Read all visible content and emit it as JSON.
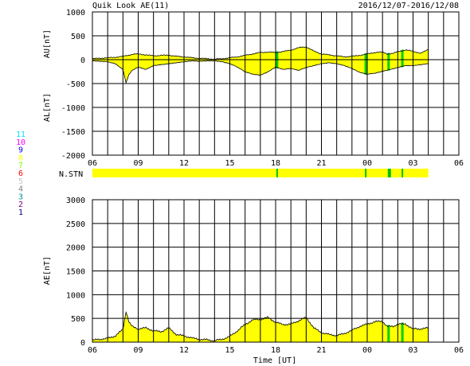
{
  "header": {
    "title": "Quik Look AE(11)",
    "date_range": "2016/12/07-2016/12/08"
  },
  "station_legend": {
    "label": "N.STN",
    "levels": [
      {
        "value": "11",
        "color": "#00e5ff"
      },
      {
        "value": "10",
        "color": "#ff00ff"
      },
      {
        "value": "9",
        "color": "#0000ff"
      },
      {
        "value": "8",
        "color": "#ffff00"
      },
      {
        "value": "7",
        "color": "#80ff00"
      },
      {
        "value": "6",
        "color": "#ff0000"
      },
      {
        "value": "5",
        "color": "#c8c8c8"
      },
      {
        "value": "4",
        "color": "#808080"
      },
      {
        "value": "3",
        "color": "#009090"
      },
      {
        "value": "2",
        "color": "#800080"
      },
      {
        "value": "1",
        "color": "#000080"
      }
    ],
    "bar_color": "#ffff00",
    "marker_color": "#00c000"
  },
  "colors": {
    "fill": "#ffff00",
    "line": "#000000",
    "grid": "#000000",
    "highlight": "#00d000"
  },
  "chart_data": [
    {
      "type": "area",
      "ylabel_upper": "AU[nT]",
      "ylabel_lower": "AL[nT]",
      "xlim": [
        6,
        30
      ],
      "ylim": [
        -2000,
        1000
      ],
      "yticks": [
        "1000",
        "500",
        "0",
        "-500",
        "-1000",
        "-1500",
        "-2000"
      ],
      "yticks_values": [
        1000,
        500,
        0,
        -500,
        -1000,
        -1500,
        -2000
      ],
      "xticks": [
        "06",
        "09",
        "12",
        "15",
        "18",
        "21",
        "00",
        "03",
        "06"
      ],
      "data_end": 28.0,
      "au": {
        "x": [
          6.0,
          6.5,
          7.0,
          7.5,
          8.0,
          8.3,
          8.6,
          9.0,
          9.5,
          10.0,
          10.5,
          11.0,
          11.5,
          12.0,
          12.5,
          13.0,
          13.5,
          14.0,
          14.5,
          15.0,
          15.5,
          16.0,
          16.5,
          17.0,
          17.5,
          18.0,
          18.5,
          19.0,
          19.5,
          20.0,
          20.5,
          21.0,
          21.5,
          22.0,
          22.5,
          23.0,
          23.5,
          24.0,
          24.5,
          25.0,
          25.3,
          25.7,
          26.0,
          26.5,
          27.0,
          27.5,
          28.0
        ],
        "y": [
          20,
          30,
          40,
          50,
          70,
          90,
          110,
          120,
          100,
          80,
          90,
          95,
          70,
          60,
          40,
          30,
          20,
          10,
          20,
          40,
          60,
          90,
          120,
          150,
          160,
          150,
          170,
          200,
          250,
          270,
          180,
          120,
          100,
          80,
          60,
          70,
          90,
          120,
          150,
          160,
          120,
          130,
          170,
          200,
          180,
          130,
          220
        ]
      },
      "al": {
        "x": [
          6.0,
          6.5,
          7.0,
          7.5,
          8.0,
          8.2,
          8.4,
          8.6,
          9.0,
          9.5,
          10.0,
          10.5,
          11.0,
          11.5,
          12.0,
          12.5,
          13.0,
          13.5,
          14.0,
          14.5,
          15.0,
          15.5,
          16.0,
          16.5,
          17.0,
          17.5,
          18.0,
          18.5,
          19.0,
          19.5,
          20.0,
          20.5,
          21.0,
          21.5,
          22.0,
          22.5,
          23.0,
          23.5,
          24.0,
          24.5,
          25.0,
          25.5,
          26.0,
          26.5,
          27.0,
          27.5,
          28.0
        ],
        "y": [
          -20,
          -30,
          -40,
          -80,
          -200,
          -480,
          -300,
          -220,
          -150,
          -200,
          -120,
          -100,
          -80,
          -60,
          -40,
          -20,
          -30,
          -20,
          -20,
          -40,
          -80,
          -150,
          -250,
          -300,
          -320,
          -250,
          -150,
          -200,
          -180,
          -220,
          -160,
          -120,
          -80,
          -60,
          -80,
          -120,
          -180,
          -260,
          -300,
          -280,
          -240,
          -200,
          -160,
          -120,
          -120,
          -100,
          -80
        ]
      },
      "station_markers_ut": [
        18.1,
        23.9,
        25.4,
        26.3
      ]
    },
    {
      "type": "area",
      "ylabel": "AE[nT]",
      "xlabel": "Time [UT]",
      "xlim": [
        6,
        30
      ],
      "ylim": [
        0,
        3000
      ],
      "yticks": [
        "3000",
        "2500",
        "2000",
        "1500",
        "1000",
        "500",
        "0"
      ],
      "yticks_values": [
        3000,
        2500,
        2000,
        1500,
        1000,
        500,
        0
      ],
      "xticks": [
        "06",
        "09",
        "12",
        "15",
        "18",
        "21",
        "00",
        "03",
        "06"
      ],
      "data_end": 28.0,
      "ae": {
        "x": [
          6.0,
          6.5,
          7.0,
          7.5,
          8.0,
          8.2,
          8.4,
          8.6,
          9.0,
          9.5,
          10.0,
          10.5,
          11.0,
          11.5,
          12.0,
          12.5,
          13.0,
          13.5,
          14.0,
          14.5,
          15.0,
          15.5,
          16.0,
          16.5,
          17.0,
          17.5,
          18.0,
          18.5,
          19.0,
          19.5,
          20.0,
          20.5,
          21.0,
          21.5,
          22.0,
          22.5,
          23.0,
          23.5,
          24.0,
          24.5,
          25.0,
          25.3,
          25.7,
          26.0,
          26.5,
          27.0,
          27.5,
          28.0
        ],
        "y": [
          40,
          60,
          80,
          130,
          270,
          650,
          420,
          330,
          280,
          300,
          240,
          220,
          300,
          160,
          130,
          90,
          60,
          50,
          30,
          60,
          120,
          240,
          370,
          470,
          480,
          520,
          420,
          370,
          380,
          450,
          520,
          300,
          200,
          160,
          140,
          180,
          250,
          330,
          380,
          430,
          440,
          330,
          330,
          380,
          380,
          280,
          280,
          300
        ]
      },
      "highlight_ut": [
        25.4,
        26.3
      ]
    }
  ]
}
